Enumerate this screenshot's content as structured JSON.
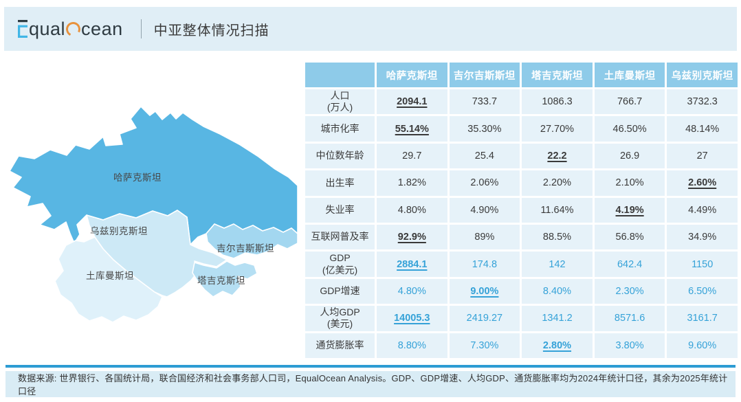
{
  "header": {
    "logo_text_part1": "qual",
    "logo_text_part2": "cean",
    "title": "中亚整体情况扫描"
  },
  "map": {
    "labels": {
      "kazakhstan": "哈萨克斯坦",
      "uzbekistan": "乌兹别克斯坦",
      "turkmenistan": "土库曼斯坦",
      "kyrgyzstan": "吉尔吉斯斯坦",
      "tajikistan": "塔吉克斯坦"
    },
    "colors": {
      "kazakhstan": "#58b6e3",
      "kyrgyzstan": "#a3d7f0",
      "tajikistan": "#b5dff3",
      "uzbekistan": "#cde9f6",
      "turkmenistan": "#dff1fa",
      "border": "#ffffff"
    }
  },
  "chart_data": {
    "type": "table",
    "title": "中亚整体情况扫描",
    "columns": [
      "哈萨克斯坦",
      "吉尔吉斯斯坦",
      "塔吉克斯坦",
      "土库曼斯坦",
      "乌兹别克斯坦"
    ],
    "rows": [
      {
        "indicator": "人口",
        "unit": "(万人)",
        "values": [
          "2094.1",
          "733.7",
          "1086.3",
          "766.7",
          "3732.3"
        ],
        "highlight_col": 0,
        "value_color": "dark"
      },
      {
        "indicator": "城市化率",
        "unit": "",
        "values": [
          "55.14%",
          "35.30%",
          "27.70%",
          "46.50%",
          "48.14%"
        ],
        "highlight_col": 0,
        "value_color": "dark"
      },
      {
        "indicator": "中位数年龄",
        "unit": "",
        "values": [
          "29.7",
          "25.4",
          "22.2",
          "26.9",
          "27"
        ],
        "highlight_col": 2,
        "value_color": "dark"
      },
      {
        "indicator": "出生率",
        "unit": "",
        "values": [
          "1.82%",
          "2.06%",
          "2.20%",
          "2.10%",
          "2.60%"
        ],
        "highlight_col": 4,
        "value_color": "dark"
      },
      {
        "indicator": "失业率",
        "unit": "",
        "values": [
          "4.80%",
          "4.90%",
          "11.64%",
          "4.19%",
          "4.49%"
        ],
        "highlight_col": 3,
        "value_color": "dark"
      },
      {
        "indicator": "互联网普及率",
        "unit": "",
        "values": [
          "92.9%",
          "89%",
          "88.5%",
          "56.8%",
          "34.9%"
        ],
        "highlight_col": 0,
        "value_color": "dark"
      },
      {
        "indicator": "GDP",
        "unit": "(亿美元)",
        "values": [
          "2884.1",
          "174.8",
          "142",
          "642.4",
          "1150"
        ],
        "highlight_col": 0,
        "value_color": "blue"
      },
      {
        "indicator": "GDP增速",
        "unit": "",
        "values": [
          "4.80%",
          "9.00%",
          "8.40%",
          "2.30%",
          "6.50%"
        ],
        "highlight_col": 1,
        "value_color": "blue"
      },
      {
        "indicator": "人均GDP",
        "unit": "(美元)",
        "values": [
          "14005.3",
          "2419.27",
          "1341.2",
          "8571.6",
          "3161.7"
        ],
        "highlight_col": 0,
        "value_color": "blue"
      },
      {
        "indicator": "通货膨胀率",
        "unit": "",
        "values": [
          "8.80%",
          "7.30%",
          "2.80%",
          "3.80%",
          "9.60%"
        ],
        "highlight_col": 2,
        "value_color": "blue"
      }
    ]
  },
  "footer": {
    "text": "数据来源: 世界银行、各国统计局，联合国经济和社会事务部人口司，EqualOcean Analysis。GDP、GDP增速、人均GDP、通货膨胀率均为2024年统计口径，其余为2025年统计口径"
  },
  "colors": {
    "topbar_bg": "#e0eef6",
    "table_header_bg": "#8ecbe9",
    "table_cell_bg": "#e6f2f9",
    "value_blue": "#35a2d8",
    "accent_line": "#2d9cd3",
    "footer_bg": "#d9ecf5",
    "logo_blue": "#41b6e6",
    "logo_orange": "#e8923d"
  }
}
